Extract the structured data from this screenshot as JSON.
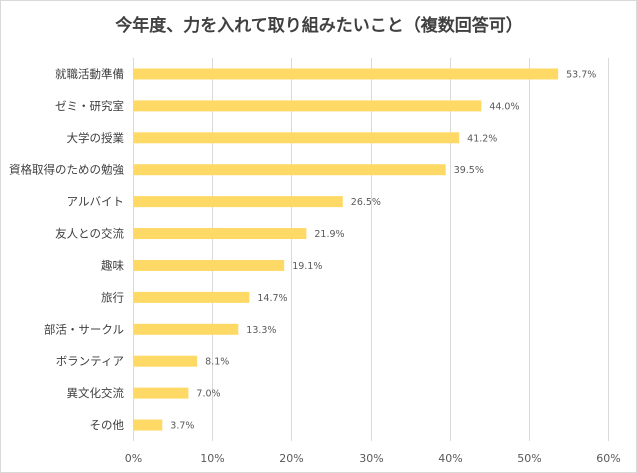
{
  "chart_data": {
    "type": "bar",
    "orientation": "horizontal",
    "title": "今年度、力を入れて取り組みたいこと（複数回答可）",
    "categories": [
      "就職活動準備",
      "ゼミ・研究室",
      "大学の授業",
      "資格取得のための勉強",
      "アルバイト",
      "友人との交流",
      "趣味",
      "旅行",
      "部活・サークル",
      "ボランティア",
      "異文化交流",
      "その他"
    ],
    "values": [
      53.7,
      44.0,
      41.2,
      39.5,
      26.5,
      21.9,
      19.1,
      14.7,
      13.3,
      8.1,
      7.0,
      3.7
    ],
    "data_labels": [
      "53.7%",
      "44.0%",
      "41.2%",
      "39.5%",
      "26.5%",
      "21.9%",
      "19.1%",
      "14.7%",
      "13.3%",
      "8.1%",
      "7.0%",
      "3.7%"
    ],
    "xlim": [
      0,
      60
    ],
    "xticks": [
      0,
      10,
      20,
      30,
      40,
      50,
      60
    ],
    "xtick_labels": [
      "0%",
      "10%",
      "20%",
      "30%",
      "40%",
      "50%",
      "60%"
    ],
    "xlabel": "",
    "ylabel": "",
    "grid": "vertical",
    "legend": "none",
    "colors": {
      "bar": "#FFD966",
      "grid": "#d9d9d9",
      "text": "#404040"
    }
  }
}
